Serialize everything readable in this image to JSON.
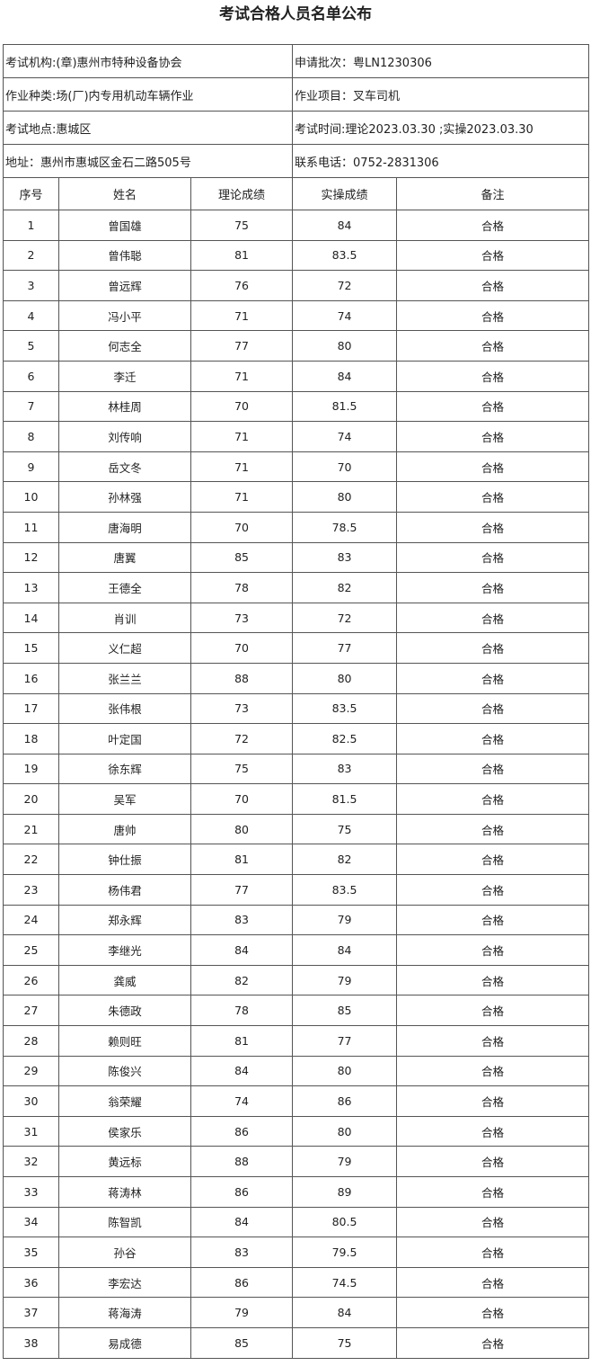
{
  "title": "考试合格人员名单公布",
  "info": [
    [
      "考试机构:(章)惠州市特种设备协会",
      "申请批次：粤LN1230306"
    ],
    [
      "作业种类:场(厂)内专用机动车辆作业",
      "作业项目：叉车司机"
    ],
    [
      "考试地点:惠城区",
      "考试时间:理论2023.03.30 ;实操2023.03.30"
    ],
    [
      "地址：惠州市惠城区金石二路505号",
      "联系电话：0752-2831306"
    ]
  ],
  "headers": [
    "序号",
    "姓名",
    "理论成绩",
    "实操成绩",
    "备注"
  ],
  "rows": [
    [
      "1",
      "曾国雄",
      "75",
      "84",
      "合格"
    ],
    [
      "2",
      "曾伟聪",
      "81",
      "83.5",
      "合格"
    ],
    [
      "3",
      "曾远辉",
      "76",
      "72",
      "合格"
    ],
    [
      "4",
      "冯小平",
      "71",
      "74",
      "合格"
    ],
    [
      "5",
      "何志全",
      "77",
      "80",
      "合格"
    ],
    [
      "6",
      "李迁",
      "71",
      "84",
      "合格"
    ],
    [
      "7",
      "林桂周",
      "70",
      "81.5",
      "合格"
    ],
    [
      "8",
      "刘传响",
      "71",
      "74",
      "合格"
    ],
    [
      "9",
      "岳文冬",
      "71",
      "70",
      "合格"
    ],
    [
      "10",
      "孙林强",
      "71",
      "80",
      "合格"
    ],
    [
      "11",
      "唐海明",
      "70",
      "78.5",
      "合格"
    ],
    [
      "12",
      "唐翼",
      "85",
      "83",
      "合格"
    ],
    [
      "13",
      "王德全",
      "78",
      "82",
      "合格"
    ],
    [
      "14",
      "肖训",
      "73",
      "72",
      "合格"
    ],
    [
      "15",
      "义仁超",
      "70",
      "77",
      "合格"
    ],
    [
      "16",
      "张兰兰",
      "88",
      "80",
      "合格"
    ],
    [
      "17",
      "张伟根",
      "73",
      "83.5",
      "合格"
    ],
    [
      "18",
      "叶定国",
      "72",
      "82.5",
      "合格"
    ],
    [
      "19",
      "徐东辉",
      "75",
      "83",
      "合格"
    ],
    [
      "20",
      "吴军",
      "70",
      "81.5",
      "合格"
    ],
    [
      "21",
      "唐帅",
      "80",
      "75",
      "合格"
    ],
    [
      "22",
      "钟仕振",
      "81",
      "82",
      "合格"
    ],
    [
      "23",
      "杨伟君",
      "77",
      "83.5",
      "合格"
    ],
    [
      "24",
      "郑永辉",
      "83",
      "79",
      "合格"
    ],
    [
      "25",
      "李继光",
      "84",
      "84",
      "合格"
    ],
    [
      "26",
      "龚威",
      "82",
      "79",
      "合格"
    ],
    [
      "27",
      "朱德政",
      "78",
      "85",
      "合格"
    ],
    [
      "28",
      "赖则旺",
      "81",
      "77",
      "合格"
    ],
    [
      "29",
      "陈俊兴",
      "84",
      "80",
      "合格"
    ],
    [
      "30",
      "翁荣耀",
      "74",
      "86",
      "合格"
    ],
    [
      "31",
      "侯家乐",
      "86",
      "80",
      "合格"
    ],
    [
      "32",
      "黄远标",
      "88",
      "79",
      "合格"
    ],
    [
      "33",
      "蒋涛林",
      "86",
      "89",
      "合格"
    ],
    [
      "34",
      "陈智凯",
      "84",
      "80.5",
      "合格"
    ],
    [
      "35",
      "孙谷",
      "83",
      "79.5",
      "合格"
    ],
    [
      "36",
      "李宏达",
      "86",
      "74.5",
      "合格"
    ],
    [
      "37",
      "蒋海涛",
      "79",
      "84",
      "合格"
    ],
    [
      "38",
      "易成德",
      "85",
      "75",
      "合格"
    ]
  ]
}
